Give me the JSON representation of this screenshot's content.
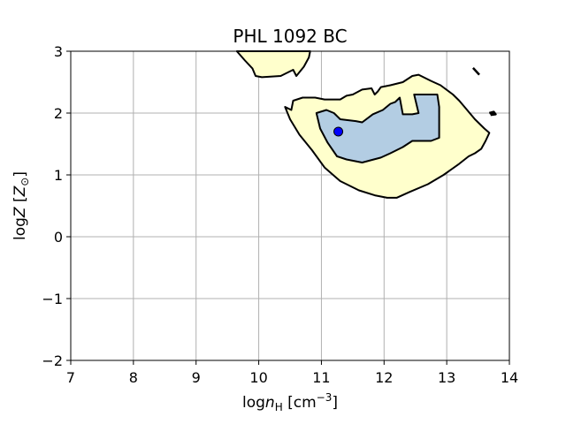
{
  "chart_data": {
    "type": "contour",
    "title": "PHL 1092 BC",
    "xlabel": {
      "main": "log",
      "italic": "n",
      "sub": "H",
      "unit_prefix": " [cm",
      "unit_sup": "−3",
      "unit_suffix": "]"
    },
    "ylabel": {
      "main": "log",
      "italic": "Z",
      "unit_prefix": " [",
      "unit_italic": "Z",
      "unit_sub": "⊙",
      "unit_suffix": "]"
    },
    "xlim": [
      7,
      14
    ],
    "ylim": [
      -2,
      3
    ],
    "xticks": [
      7,
      8,
      9,
      10,
      11,
      12,
      13,
      14
    ],
    "yticks": [
      -2,
      -1,
      0,
      1,
      2,
      3
    ],
    "xtick_labels": [
      "7",
      "8",
      "9",
      "10",
      "11",
      "12",
      "13",
      "14"
    ],
    "ytick_labels": [
      "−2",
      "−1",
      "0",
      "1",
      "2",
      "3"
    ],
    "grid": true,
    "colors": {
      "outer_fill": "#ffffcc",
      "inner_fill": "#b3cde3",
      "contour_line": "#000000",
      "marker_fill": "#0000ff",
      "grid": "#b0b0b0"
    },
    "regions": [
      {
        "level": "outer",
        "points": [
          [
            9.65,
            3.0
          ],
          [
            9.78,
            2.85
          ],
          [
            9.9,
            2.72
          ],
          [
            9.95,
            2.6
          ],
          [
            10.05,
            2.58
          ],
          [
            10.35,
            2.6
          ],
          [
            10.55,
            2.7
          ],
          [
            10.6,
            2.6
          ],
          [
            10.72,
            2.75
          ],
          [
            10.8,
            2.9
          ],
          [
            10.82,
            3.0
          ]
        ]
      },
      {
        "level": "outer",
        "points": [
          [
            10.42,
            2.1
          ],
          [
            10.52,
            2.05
          ],
          [
            10.55,
            2.2
          ],
          [
            10.7,
            2.25
          ],
          [
            10.9,
            2.25
          ],
          [
            11.05,
            2.22
          ],
          [
            11.3,
            2.22
          ],
          [
            11.4,
            2.28
          ],
          [
            11.5,
            2.3
          ],
          [
            11.65,
            2.38
          ],
          [
            11.8,
            2.4
          ],
          [
            11.85,
            2.3
          ],
          [
            11.9,
            2.35
          ],
          [
            11.95,
            2.42
          ],
          [
            12.1,
            2.45
          ],
          [
            12.3,
            2.5
          ],
          [
            12.45,
            2.6
          ],
          [
            12.55,
            2.62
          ],
          [
            12.75,
            2.52
          ],
          [
            12.9,
            2.45
          ],
          [
            13.1,
            2.3
          ],
          [
            13.2,
            2.2
          ],
          [
            13.3,
            2.08
          ],
          [
            13.45,
            1.9
          ],
          [
            13.6,
            1.75
          ],
          [
            13.68,
            1.68
          ],
          [
            13.62,
            1.55
          ],
          [
            13.55,
            1.42
          ],
          [
            13.45,
            1.35
          ],
          [
            13.35,
            1.3
          ],
          [
            13.2,
            1.18
          ],
          [
            12.95,
            1.0
          ],
          [
            12.7,
            0.85
          ],
          [
            12.4,
            0.72
          ],
          [
            12.2,
            0.63
          ],
          [
            12.05,
            0.63
          ],
          [
            11.85,
            0.67
          ],
          [
            11.6,
            0.75
          ],
          [
            11.3,
            0.9
          ],
          [
            11.05,
            1.12
          ],
          [
            10.85,
            1.4
          ],
          [
            10.65,
            1.65
          ],
          [
            10.5,
            1.9
          ]
        ]
      },
      {
        "level": "inner",
        "points": [
          [
            10.92,
            2.0
          ],
          [
            11.08,
            2.05
          ],
          [
            11.2,
            2.0
          ],
          [
            11.3,
            1.9
          ],
          [
            11.55,
            1.87
          ],
          [
            11.65,
            1.85
          ],
          [
            11.82,
            1.98
          ],
          [
            11.98,
            2.05
          ],
          [
            12.1,
            2.15
          ],
          [
            12.18,
            2.18
          ],
          [
            12.25,
            2.25
          ],
          [
            12.3,
            1.98
          ],
          [
            12.45,
            1.98
          ],
          [
            12.55,
            2.0
          ],
          [
            12.48,
            2.3
          ],
          [
            12.85,
            2.3
          ],
          [
            12.88,
            2.1
          ],
          [
            12.88,
            1.6
          ],
          [
            12.75,
            1.55
          ],
          [
            12.55,
            1.55
          ],
          [
            12.45,
            1.55
          ],
          [
            12.3,
            1.45
          ],
          [
            12.1,
            1.35
          ],
          [
            11.95,
            1.28
          ],
          [
            11.65,
            1.2
          ],
          [
            11.4,
            1.25
          ],
          [
            11.25,
            1.3
          ],
          [
            11.1,
            1.52
          ],
          [
            10.98,
            1.75
          ]
        ]
      }
    ],
    "artifacts": [
      [
        [
          13.42,
          2.73
        ],
        [
          13.52,
          2.62
        ]
      ],
      [
        [
          13.68,
          2.0
        ],
        [
          13.75,
          2.02
        ],
        [
          13.78,
          1.98
        ],
        [
          13.7,
          1.97
        ]
      ]
    ],
    "points": [
      {
        "x": 11.27,
        "y": 1.7
      }
    ]
  }
}
